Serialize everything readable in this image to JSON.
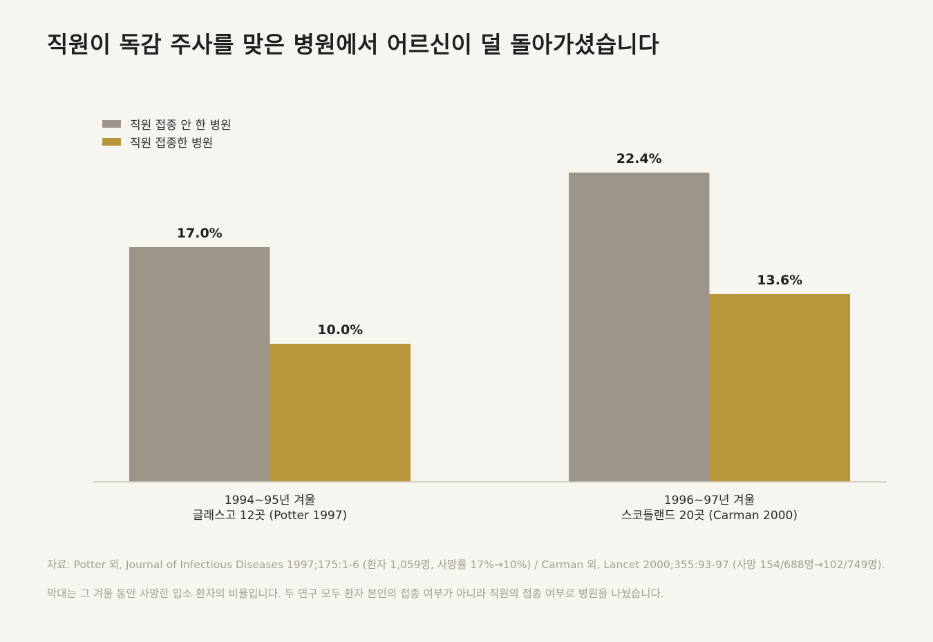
{
  "colors": {
    "not_vaccinated": "#9d958a",
    "vaccinated": "#b8963c",
    "axis": "#c9c5bd",
    "note_text": "#a39e96"
  },
  "chart_data": {
    "type": "bar",
    "title": "직원이 독감 주사를 맞은 병원에서 어르신이 덜 돌아가셨습니다",
    "categories": [
      [
        "1994~95년 겨울",
        "글래스고 12곳 (Potter 1997)"
      ],
      [
        "1996~97년 겨울",
        "스코틀랜드 20곳 (Carman 2000)"
      ]
    ],
    "series": [
      {
        "name": "직원 접종 안 한 병원",
        "values": [
          17.0,
          22.4
        ],
        "labels": [
          "17.0%",
          "22.4%"
        ]
      },
      {
        "name": "직원 접종한 병원",
        "values": [
          10.0,
          13.6
        ],
        "labels": [
          "10.0%",
          "13.6%"
        ]
      }
    ],
    "ylim": [
      0,
      26
    ],
    "grid": false,
    "legend_position": "top-left",
    "xlabel": "",
    "ylabel": ""
  },
  "notes": [
    "자료: Potter 외, Journal of Infectious Diseases 1997;175:1-6 (환자 1,059명, 사망률 17%→10%) / Carman 외, Lancet 2000;355:93-97 (사망 154/688명→102/749명).",
    "막대는 그 겨울 동안 사망한 입소 환자의 비율입니다. 두 연구 모두 환자 본인의 접종 여부가 아니라 직원의 접종 여부로 병원을 나눴습니다."
  ]
}
